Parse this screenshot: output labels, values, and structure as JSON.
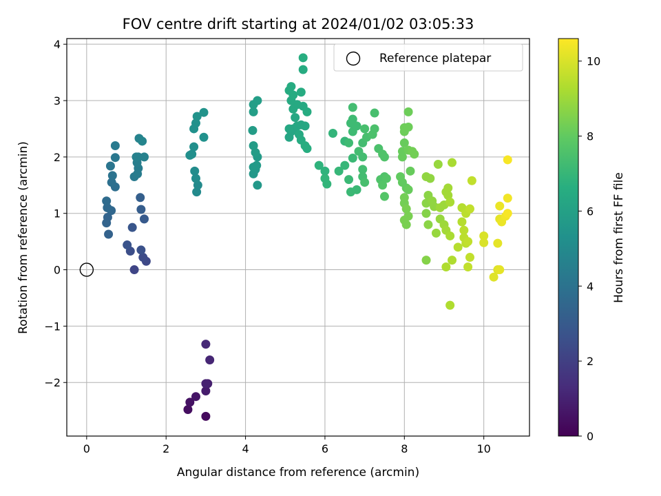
{
  "chart_data": {
    "type": "scatter",
    "title": "FOV centre drift starting at 2024/01/02 03:05:33",
    "xlabel": "Angular distance from reference (arcmin)",
    "ylabel": "Rotation from reference (arcmin)",
    "xlim": [
      -0.5,
      11.15
    ],
    "ylim": [
      -2.95,
      4.1
    ],
    "xticks": [
      0,
      2,
      4,
      6,
      8,
      10
    ],
    "yticks": [
      -2,
      -1,
      0,
      1,
      2,
      3,
      4
    ],
    "xtick_labels": [
      "0",
      "2",
      "4",
      "6",
      "8",
      "10"
    ],
    "ytick_labels": [
      "−2",
      "−1",
      "0",
      "1",
      "2",
      "3",
      "4"
    ],
    "grid": true,
    "colormap": "viridis",
    "colorbar": {
      "label": "Hours from first FF file",
      "range": [
        0,
        10.6
      ],
      "ticks": [
        0,
        2,
        4,
        6,
        8,
        10
      ],
      "tick_labels": [
        "0",
        "2",
        "4",
        "6",
        "8",
        "10"
      ]
    },
    "legend": {
      "entries": [
        "Reference platepar"
      ],
      "placement": "top-right"
    },
    "reference": {
      "x": 0,
      "y": 0
    },
    "points": [
      [
        3.0,
        -2.6,
        0.3
      ],
      [
        2.55,
        -2.48,
        0.4
      ],
      [
        2.6,
        -2.35,
        0.5
      ],
      [
        2.75,
        -2.25,
        0.6
      ],
      [
        3.0,
        -2.15,
        0.8
      ],
      [
        3.05,
        -2.02,
        0.9
      ],
      [
        3.0,
        -2.02,
        1.0
      ],
      [
        3.1,
        -1.6,
        1.1
      ],
      [
        3.0,
        -1.32,
        1.2
      ],
      [
        1.2,
        0.0,
        2.2
      ],
      [
        1.5,
        0.15,
        2.3
      ],
      [
        1.42,
        0.22,
        2.4
      ],
      [
        1.1,
        0.33,
        2.5
      ],
      [
        1.37,
        0.35,
        2.6
      ],
      [
        1.02,
        0.44,
        2.7
      ],
      [
        1.15,
        0.75,
        2.8
      ],
      [
        1.45,
        0.9,
        3.0
      ],
      [
        1.37,
        1.07,
        3.1
      ],
      [
        1.35,
        1.28,
        3.2
      ],
      [
        0.55,
        0.63,
        3.3
      ],
      [
        0.5,
        0.83,
        3.4
      ],
      [
        0.53,
        0.93,
        3.4
      ],
      [
        0.62,
        1.05,
        3.5
      ],
      [
        0.52,
        1.1,
        3.6
      ],
      [
        0.5,
        1.22,
        3.7
      ],
      [
        0.72,
        1.47,
        3.8
      ],
      [
        0.63,
        1.55,
        3.9
      ],
      [
        0.65,
        1.67,
        4.0
      ],
      [
        0.6,
        1.84,
        4.1
      ],
      [
        0.72,
        1.99,
        4.2
      ],
      [
        0.72,
        2.2,
        4.3
      ],
      [
        1.2,
        1.65,
        4.3
      ],
      [
        1.28,
        1.7,
        4.4
      ],
      [
        1.3,
        1.8,
        4.4
      ],
      [
        1.27,
        1.9,
        4.5
      ],
      [
        1.3,
        2.0,
        4.5
      ],
      [
        1.25,
        2.0,
        4.6
      ],
      [
        1.45,
        2.0,
        4.6
      ],
      [
        1.32,
        2.33,
        4.7
      ],
      [
        1.4,
        2.28,
        4.8
      ],
      [
        2.77,
        1.38,
        5.0
      ],
      [
        2.8,
        1.5,
        5.0
      ],
      [
        2.75,
        1.62,
        5.1
      ],
      [
        2.72,
        1.75,
        5.1
      ],
      [
        2.6,
        2.03,
        5.2
      ],
      [
        2.65,
        2.05,
        5.2
      ],
      [
        2.7,
        2.18,
        5.2
      ],
      [
        2.95,
        2.35,
        5.3
      ],
      [
        2.7,
        2.5,
        5.3
      ],
      [
        2.75,
        2.6,
        5.3
      ],
      [
        2.78,
        2.72,
        5.4
      ],
      [
        2.95,
        2.79,
        5.4
      ],
      [
        4.3,
        1.5,
        5.6
      ],
      [
        4.2,
        1.7,
        5.6
      ],
      [
        4.25,
        1.78,
        5.6
      ],
      [
        4.2,
        1.82,
        5.7
      ],
      [
        4.28,
        1.85,
        5.7
      ],
      [
        4.3,
        2.0,
        5.7
      ],
      [
        4.25,
        2.08,
        5.8
      ],
      [
        4.2,
        2.2,
        5.8
      ],
      [
        4.18,
        2.47,
        5.8
      ],
      [
        4.2,
        2.8,
        5.9
      ],
      [
        4.2,
        2.93,
        5.9
      ],
      [
        4.3,
        3.0,
        5.9
      ],
      [
        5.1,
        2.35,
        6.2
      ],
      [
        5.15,
        2.45,
        6.2
      ],
      [
        5.2,
        2.5,
        6.2
      ],
      [
        5.1,
        2.5,
        6.3
      ],
      [
        5.3,
        2.55,
        6.3
      ],
      [
        5.4,
        2.57,
        6.3
      ],
      [
        5.5,
        2.55,
        6.3
      ],
      [
        5.25,
        2.7,
        6.3
      ],
      [
        5.2,
        2.85,
        6.4
      ],
      [
        5.3,
        2.93,
        6.4
      ],
      [
        5.45,
        2.9,
        6.4
      ],
      [
        5.15,
        3.0,
        6.4
      ],
      [
        5.2,
        3.1,
        6.5
      ],
      [
        5.1,
        3.18,
        6.5
      ],
      [
        5.15,
        3.25,
        6.5
      ],
      [
        5.4,
        3.15,
        6.5
      ],
      [
        5.45,
        3.55,
        6.5
      ],
      [
        5.45,
        3.76,
        6.6
      ],
      [
        5.55,
        2.8,
        6.5
      ],
      [
        5.4,
        2.3,
        6.5
      ],
      [
        5.5,
        2.2,
        6.6
      ],
      [
        5.55,
        2.15,
        6.6
      ],
      [
        5.35,
        2.4,
        6.4
      ],
      [
        5.85,
        1.85,
        6.8
      ],
      [
        6.0,
        1.75,
        6.8
      ],
      [
        6.0,
        1.62,
        6.9
      ],
      [
        6.05,
        1.52,
        6.9
      ],
      [
        6.2,
        2.42,
        6.9
      ],
      [
        6.35,
        1.75,
        7.0
      ],
      [
        6.5,
        1.85,
        7.0
      ],
      [
        6.5,
        2.28,
        7.0
      ],
      [
        6.6,
        1.6,
        7.1
      ],
      [
        6.65,
        1.38,
        7.1
      ],
      [
        6.8,
        1.42,
        7.1
      ],
      [
        6.7,
        1.98,
        7.1
      ],
      [
        6.6,
        2.25,
        7.2
      ],
      [
        6.7,
        2.45,
        7.2
      ],
      [
        6.65,
        2.6,
        7.2
      ],
      [
        6.7,
        2.67,
        7.2
      ],
      [
        6.8,
        2.55,
        7.2
      ],
      [
        6.7,
        2.88,
        7.3
      ],
      [
        6.85,
        2.1,
        7.3
      ],
      [
        6.95,
        2.0,
        7.3
      ],
      [
        6.95,
        1.78,
        7.3
      ],
      [
        6.95,
        1.65,
        7.3
      ],
      [
        7.0,
        1.55,
        7.4
      ],
      [
        6.95,
        2.25,
        7.3
      ],
      [
        7.05,
        2.35,
        7.4
      ],
      [
        7.0,
        2.5,
        7.4
      ],
      [
        7.25,
        2.78,
        7.4
      ],
      [
        7.2,
        2.4,
        7.5
      ],
      [
        7.25,
        2.5,
        7.5
      ],
      [
        7.35,
        2.15,
        7.5
      ],
      [
        7.45,
        2.05,
        7.6
      ],
      [
        7.5,
        2.0,
        7.6
      ],
      [
        7.5,
        1.65,
        7.6
      ],
      [
        7.4,
        1.6,
        7.6
      ],
      [
        7.45,
        1.5,
        7.7
      ],
      [
        7.5,
        1.3,
        7.7
      ],
      [
        7.55,
        1.62,
        7.7
      ],
      [
        7.9,
        1.65,
        8.0
      ],
      [
        7.95,
        1.55,
        8.0
      ],
      [
        8.05,
        1.45,
        8.0
      ],
      [
        8.1,
        1.42,
        8.1
      ],
      [
        8.15,
        1.75,
        8.1
      ],
      [
        7.95,
        2.0,
        8.1
      ],
      [
        7.95,
        2.1,
        8.1
      ],
      [
        8.0,
        2.25,
        8.1
      ],
      [
        8.0,
        2.45,
        8.2
      ],
      [
        8.0,
        2.52,
        8.2
      ],
      [
        8.1,
        2.53,
        8.2
      ],
      [
        8.1,
        2.8,
        8.2
      ],
      [
        8.1,
        2.12,
        8.2
      ],
      [
        8.2,
        2.1,
        8.3
      ],
      [
        8.25,
        2.05,
        8.3
      ],
      [
        8.0,
        1.28,
        8.3
      ],
      [
        8.0,
        1.18,
        8.3
      ],
      [
        8.05,
        1.08,
        8.4
      ],
      [
        8.1,
        0.95,
        8.4
      ],
      [
        8.0,
        0.88,
        8.4
      ],
      [
        8.05,
        0.8,
        8.4
      ],
      [
        8.55,
        0.17,
        8.6
      ],
      [
        8.55,
        1.0,
        8.6
      ],
      [
        8.6,
        0.8,
        8.7
      ],
      [
        8.55,
        1.18,
        8.7
      ],
      [
        8.6,
        1.32,
        8.7
      ],
      [
        8.7,
        1.22,
        8.8
      ],
      [
        8.75,
        1.12,
        8.8
      ],
      [
        8.55,
        1.65,
        8.8
      ],
      [
        8.65,
        1.62,
        8.8
      ],
      [
        8.85,
        1.87,
        8.9
      ],
      [
        8.8,
        0.65,
        8.9
      ],
      [
        8.9,
        0.9,
        8.9
      ],
      [
        8.9,
        1.1,
        9.0
      ],
      [
        9.0,
        1.15,
        9.0
      ],
      [
        9.0,
        0.8,
        9.0
      ],
      [
        9.05,
        0.7,
        9.1
      ],
      [
        9.05,
        1.38,
        9.1
      ],
      [
        9.1,
        1.45,
        9.1
      ],
      [
        9.1,
        1.32,
        9.1
      ],
      [
        9.15,
        1.2,
        9.2
      ],
      [
        9.15,
        0.6,
        9.2
      ],
      [
        9.2,
        1.9,
        9.2
      ],
      [
        9.05,
        0.05,
        9.3
      ],
      [
        9.2,
        0.17,
        9.3
      ],
      [
        9.15,
        -0.63,
        9.3
      ],
      [
        9.35,
        0.4,
        9.4
      ],
      [
        9.45,
        1.1,
        9.4
      ],
      [
        9.45,
        0.85,
        9.4
      ],
      [
        9.5,
        0.7,
        9.5
      ],
      [
        9.5,
        0.57,
        9.5
      ],
      [
        9.55,
        0.47,
        9.5
      ],
      [
        9.55,
        1.0,
        9.5
      ],
      [
        9.6,
        0.05,
        9.6
      ],
      [
        9.65,
        0.22,
        9.6
      ],
      [
        9.65,
        1.08,
        9.6
      ],
      [
        9.7,
        1.58,
        9.6
      ],
      [
        9.6,
        0.5,
        9.6
      ],
      [
        10.0,
        0.6,
        10.0
      ],
      [
        10.0,
        0.48,
        10.0
      ],
      [
        10.25,
        -0.13,
        10.1
      ],
      [
        10.35,
        0.0,
        10.1
      ],
      [
        10.4,
        0.0,
        10.2
      ],
      [
        10.35,
        0.47,
        10.2
      ],
      [
        10.4,
        0.9,
        10.2
      ],
      [
        10.45,
        0.85,
        10.3
      ],
      [
        10.4,
        1.13,
        10.3
      ],
      [
        10.55,
        0.95,
        10.4
      ],
      [
        10.6,
        1.27,
        10.4
      ],
      [
        10.6,
        1.0,
        10.5
      ],
      [
        10.6,
        1.95,
        10.5
      ]
    ]
  }
}
